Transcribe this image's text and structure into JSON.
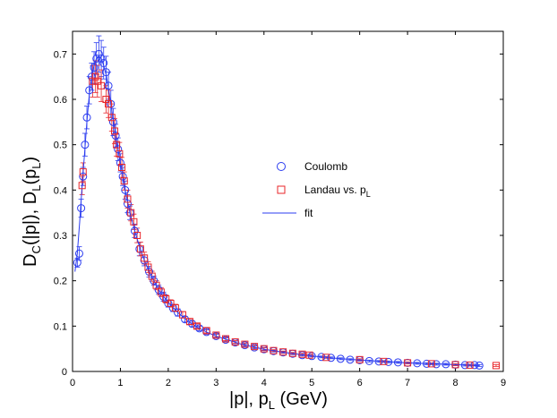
{
  "chart_data": {
    "type": "scatter",
    "xlabel": "|p|, p",
    "xlabel_sub": "L",
    "xlabel_tail": " (GeV)",
    "ylabel": {
      "p1": "D",
      "s1": "C",
      "p2": "(|p|), D",
      "s2": "L",
      "p3": "(p",
      "s3": "L",
      "p4": ")"
    },
    "xlim": [
      0,
      9
    ],
    "ylim": [
      0,
      0.75
    ],
    "xticks": [
      0,
      1,
      2,
      3,
      4,
      5,
      6,
      7,
      8,
      9
    ],
    "yticks": [
      0,
      0.1,
      0.2,
      0.3,
      0.4,
      0.5,
      0.6,
      0.7
    ],
    "xtick_labels": [
      "0",
      "1",
      "2",
      "3",
      "4",
      "5",
      "6",
      "7",
      "8",
      "9"
    ],
    "ytick_labels": [
      "0",
      "0.1",
      "0.2",
      "0.3",
      "0.4",
      "0.5",
      "0.6",
      "0.7"
    ],
    "legend": [
      {
        "label": "Coulomb",
        "marker": "circle",
        "color": "#2b3cf0"
      },
      {
        "label": "Landau vs. p",
        "label_sub": "L",
        "marker": "square",
        "color": "#e8262a"
      },
      {
        "label": "fit",
        "marker": "line",
        "color": "#2b3cf0"
      }
    ],
    "series": [
      {
        "name": "Coulomb",
        "marker": "circle",
        "color": "#2b3cf0",
        "points": [
          [
            0.1,
            0.24,
            0.01
          ],
          [
            0.14,
            0.26,
            0.015
          ],
          [
            0.18,
            0.36,
            0.02
          ],
          [
            0.22,
            0.43,
            0.02
          ],
          [
            0.26,
            0.5,
            0.025
          ],
          [
            0.3,
            0.56,
            0.025
          ],
          [
            0.35,
            0.62,
            0.03
          ],
          [
            0.4,
            0.65,
            0.03
          ],
          [
            0.45,
            0.67,
            0.035
          ],
          [
            0.5,
            0.69,
            0.035
          ],
          [
            0.55,
            0.7,
            0.04
          ],
          [
            0.6,
            0.69,
            0.04
          ],
          [
            0.65,
            0.68,
            0.035
          ],
          [
            0.7,
            0.66,
            0.035
          ],
          [
            0.75,
            0.63,
            0.03
          ],
          [
            0.8,
            0.59,
            0.03
          ],
          [
            0.85,
            0.55,
            0.03
          ],
          [
            0.9,
            0.52,
            0.025
          ],
          [
            0.95,
            0.49,
            0.025
          ],
          [
            1.0,
            0.46,
            0.02
          ],
          [
            1.05,
            0.43,
            0.02
          ],
          [
            1.1,
            0.4,
            0.02
          ],
          [
            1.15,
            0.37,
            0.02
          ],
          [
            1.2,
            0.35,
            0.015
          ],
          [
            1.3,
            0.31,
            0.015
          ],
          [
            1.4,
            0.27,
            0.015
          ],
          [
            1.5,
            0.245,
            0.012
          ],
          [
            1.6,
            0.22,
            0.012
          ],
          [
            1.7,
            0.2,
            0.01
          ],
          [
            1.8,
            0.18,
            0.01
          ],
          [
            1.9,
            0.165,
            0.01
          ],
          [
            2.0,
            0.15,
            0.008
          ],
          [
            2.1,
            0.14,
            0.008
          ],
          [
            2.2,
            0.13,
            0.008
          ],
          [
            2.35,
            0.115,
            0.006
          ],
          [
            2.5,
            0.105,
            0.006
          ],
          [
            2.65,
            0.095,
            0.005
          ],
          [
            2.8,
            0.087,
            0.005
          ],
          [
            3.0,
            0.078,
            0.004
          ],
          [
            3.2,
            0.07,
            0.004
          ],
          [
            3.4,
            0.064,
            0.003
          ],
          [
            3.6,
            0.058,
            0.003
          ],
          [
            3.8,
            0.053,
            0.003
          ],
          [
            4.0,
            0.049,
            0.003
          ],
          [
            4.2,
            0.045,
            0.002
          ],
          [
            4.4,
            0.042,
            0.002
          ],
          [
            4.6,
            0.039,
            0.002
          ],
          [
            4.8,
            0.036,
            0.002
          ],
          [
            5.0,
            0.034,
            0.002
          ],
          [
            5.2,
            0.032,
            0.002
          ],
          [
            5.4,
            0.03,
            0.002
          ],
          [
            5.6,
            0.028,
            0.002
          ],
          [
            5.8,
            0.026,
            0.002
          ],
          [
            6.0,
            0.025,
            0.002
          ],
          [
            6.2,
            0.023,
            0.002
          ],
          [
            6.4,
            0.022,
            0.002
          ],
          [
            6.6,
            0.021,
            0.002
          ],
          [
            6.8,
            0.02,
            0.002
          ],
          [
            7.0,
            0.019,
            0.002
          ],
          [
            7.2,
            0.018,
            0.002
          ],
          [
            7.4,
            0.017,
            0.002
          ],
          [
            7.6,
            0.016,
            0.002
          ],
          [
            7.8,
            0.016,
            0.002
          ],
          [
            8.0,
            0.015,
            0.002
          ],
          [
            8.2,
            0.014,
            0.002
          ],
          [
            8.4,
            0.014,
            0.002
          ],
          [
            8.5,
            0.013,
            0.002
          ]
        ]
      },
      {
        "name": "Landau vs. pL",
        "marker": "square",
        "color": "#e8262a",
        "points": [
          [
            0.2,
            0.41,
            0.02
          ],
          [
            0.22,
            0.44,
            0.02
          ],
          [
            0.42,
            0.64,
            0.035
          ],
          [
            0.48,
            0.65,
            0.035
          ],
          [
            0.52,
            0.64,
            0.035
          ],
          [
            0.6,
            0.63,
            0.035
          ],
          [
            0.7,
            0.6,
            0.03
          ],
          [
            0.75,
            0.59,
            0.03
          ],
          [
            0.82,
            0.56,
            0.03
          ],
          [
            0.88,
            0.53,
            0.028
          ],
          [
            0.92,
            0.5,
            0.025
          ],
          [
            0.98,
            0.48,
            0.025
          ],
          [
            1.03,
            0.45,
            0.022
          ],
          [
            1.08,
            0.42,
            0.02
          ],
          [
            1.15,
            0.38,
            0.02
          ],
          [
            1.22,
            0.35,
            0.018
          ],
          [
            1.28,
            0.33,
            0.017
          ],
          [
            1.35,
            0.3,
            0.016
          ],
          [
            1.42,
            0.27,
            0.015
          ],
          [
            1.5,
            0.25,
            0.013
          ],
          [
            1.58,
            0.23,
            0.012
          ],
          [
            1.66,
            0.21,
            0.011
          ],
          [
            1.75,
            0.19,
            0.01
          ],
          [
            1.85,
            0.175,
            0.01
          ],
          [
            1.95,
            0.16,
            0.009
          ],
          [
            2.05,
            0.15,
            0.008
          ],
          [
            2.15,
            0.14,
            0.008
          ],
          [
            2.3,
            0.125,
            0.007
          ],
          [
            2.45,
            0.11,
            0.006
          ],
          [
            2.6,
            0.1,
            0.005
          ],
          [
            2.8,
            0.09,
            0.005
          ],
          [
            3.0,
            0.08,
            0.004
          ],
          [
            3.2,
            0.072,
            0.004
          ],
          [
            3.4,
            0.065,
            0.003
          ],
          [
            3.6,
            0.06,
            0.003
          ],
          [
            3.8,
            0.055,
            0.003
          ],
          [
            4.0,
            0.05,
            0.003
          ],
          [
            4.2,
            0.046,
            0.002
          ],
          [
            4.4,
            0.043,
            0.002
          ],
          [
            4.6,
            0.04,
            0.002
          ],
          [
            4.8,
            0.038,
            0.002
          ],
          [
            4.95,
            0.036,
            0.002
          ],
          [
            5.3,
            0.031,
            0.002
          ],
          [
            6.0,
            0.026,
            0.002
          ],
          [
            6.5,
            0.022,
            0.002
          ],
          [
            7.0,
            0.019,
            0.002
          ],
          [
            7.5,
            0.017,
            0.002
          ],
          [
            8.0,
            0.015,
            0.002
          ],
          [
            8.3,
            0.014,
            0.002
          ],
          [
            8.85,
            0.013,
            0.002
          ]
        ]
      },
      {
        "name": "fit",
        "marker": "line",
        "color": "#2b3cf0",
        "points": [
          [
            0.05,
            0.22
          ],
          [
            0.1,
            0.26
          ],
          [
            0.15,
            0.33
          ],
          [
            0.2,
            0.41
          ],
          [
            0.25,
            0.48
          ],
          [
            0.3,
            0.55
          ],
          [
            0.35,
            0.61
          ],
          [
            0.4,
            0.65
          ],
          [
            0.45,
            0.675
          ],
          [
            0.5,
            0.69
          ],
          [
            0.55,
            0.695
          ],
          [
            0.6,
            0.69
          ],
          [
            0.65,
            0.675
          ],
          [
            0.7,
            0.655
          ],
          [
            0.75,
            0.625
          ],
          [
            0.8,
            0.59
          ],
          [
            0.85,
            0.555
          ],
          [
            0.9,
            0.52
          ],
          [
            0.95,
            0.49
          ],
          [
            1.0,
            0.46
          ],
          [
            1.1,
            0.4
          ],
          [
            1.2,
            0.35
          ],
          [
            1.3,
            0.31
          ],
          [
            1.4,
            0.275
          ],
          [
            1.5,
            0.245
          ],
          [
            1.6,
            0.22
          ],
          [
            1.7,
            0.2
          ],
          [
            1.8,
            0.18
          ],
          [
            2.0,
            0.152
          ],
          [
            2.2,
            0.13
          ],
          [
            2.4,
            0.112
          ],
          [
            2.6,
            0.098
          ],
          [
            2.8,
            0.087
          ],
          [
            3.0,
            0.078
          ],
          [
            3.5,
            0.061
          ],
          [
            4.0,
            0.049
          ],
          [
            4.5,
            0.041
          ],
          [
            5.0,
            0.034
          ],
          [
            5.5,
            0.029
          ],
          [
            6.0,
            0.025
          ],
          [
            6.5,
            0.022
          ],
          [
            7.0,
            0.019
          ],
          [
            7.5,
            0.017
          ],
          [
            8.0,
            0.015
          ],
          [
            8.5,
            0.013
          ]
        ]
      }
    ]
  }
}
